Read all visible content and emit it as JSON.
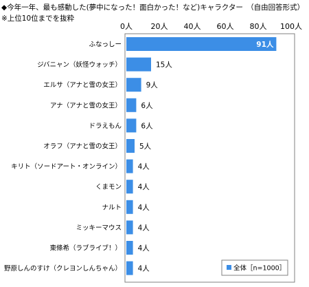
{
  "title_line1": "◆今年一年、最も感動した(夢中になった！面白かった！など)キャラクター　（自由回答形式）",
  "title_line2": "※上位10位までを抜粋",
  "colors": {
    "bar": "#3C8EE6",
    "frame": "#808080"
  },
  "chart_data": {
    "type": "bar",
    "orientation": "horizontal",
    "unit": "人",
    "xlim": [
      0,
      100
    ],
    "ticks": [
      0,
      20,
      40,
      60,
      80,
      100
    ],
    "tick_labels": [
      "0人",
      "20人",
      "40人",
      "60人",
      "80人",
      "100人"
    ],
    "categories": [
      "ふなっしー",
      "ジバニャン（妖怪ウォッチ）",
      "エルサ（アナと雪の女王）",
      "アナ（アナと雪の女王）",
      "ドラえもん",
      "オラフ（アナと雪の女王）",
      "キリト（ソードアート・オンライン）",
      "くまモン",
      "ナルト",
      "ミッキーマウス",
      "東條希（ラブライブ！）",
      "野原しんのすけ（クレヨンしんちゃん）"
    ],
    "series": [
      {
        "name": "全体［n=1000］",
        "values": [
          91,
          15,
          9,
          6,
          6,
          5,
          4,
          4,
          4,
          4,
          4,
          4
        ]
      }
    ],
    "value_labels": [
      "91人",
      "15人",
      "9人",
      "6人",
      "6人",
      "5人",
      "4人",
      "4人",
      "4人",
      "4人",
      "4人",
      "4人"
    ],
    "legend_position": "bottom-right"
  }
}
